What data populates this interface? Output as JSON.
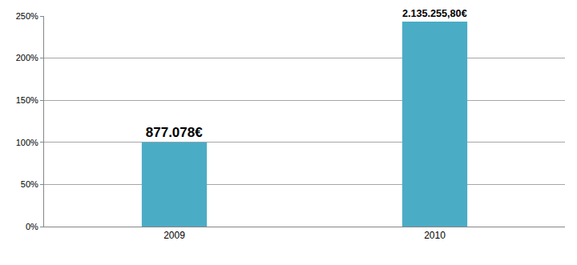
{
  "chart_data": {
    "type": "bar",
    "categories": [
      "2009",
      "2010"
    ],
    "values": [
      100,
      243.45
    ],
    "color": "#4bacc6",
    "annotations": [
      {
        "category": "2009",
        "text": "877.078€"
      },
      {
        "category": "2010",
        "text": "2.135.255,80€"
      }
    ],
    "ylim": [
      0,
      250
    ],
    "yticks": [
      {
        "value": 0,
        "label": "0%"
      },
      {
        "value": 50,
        "label": "50%"
      },
      {
        "value": 100,
        "label": "100%"
      },
      {
        "value": 150,
        "label": "150%"
      },
      {
        "value": 200,
        "label": "200%"
      },
      {
        "value": 250,
        "label": "250%"
      }
    ],
    "grid": true
  }
}
